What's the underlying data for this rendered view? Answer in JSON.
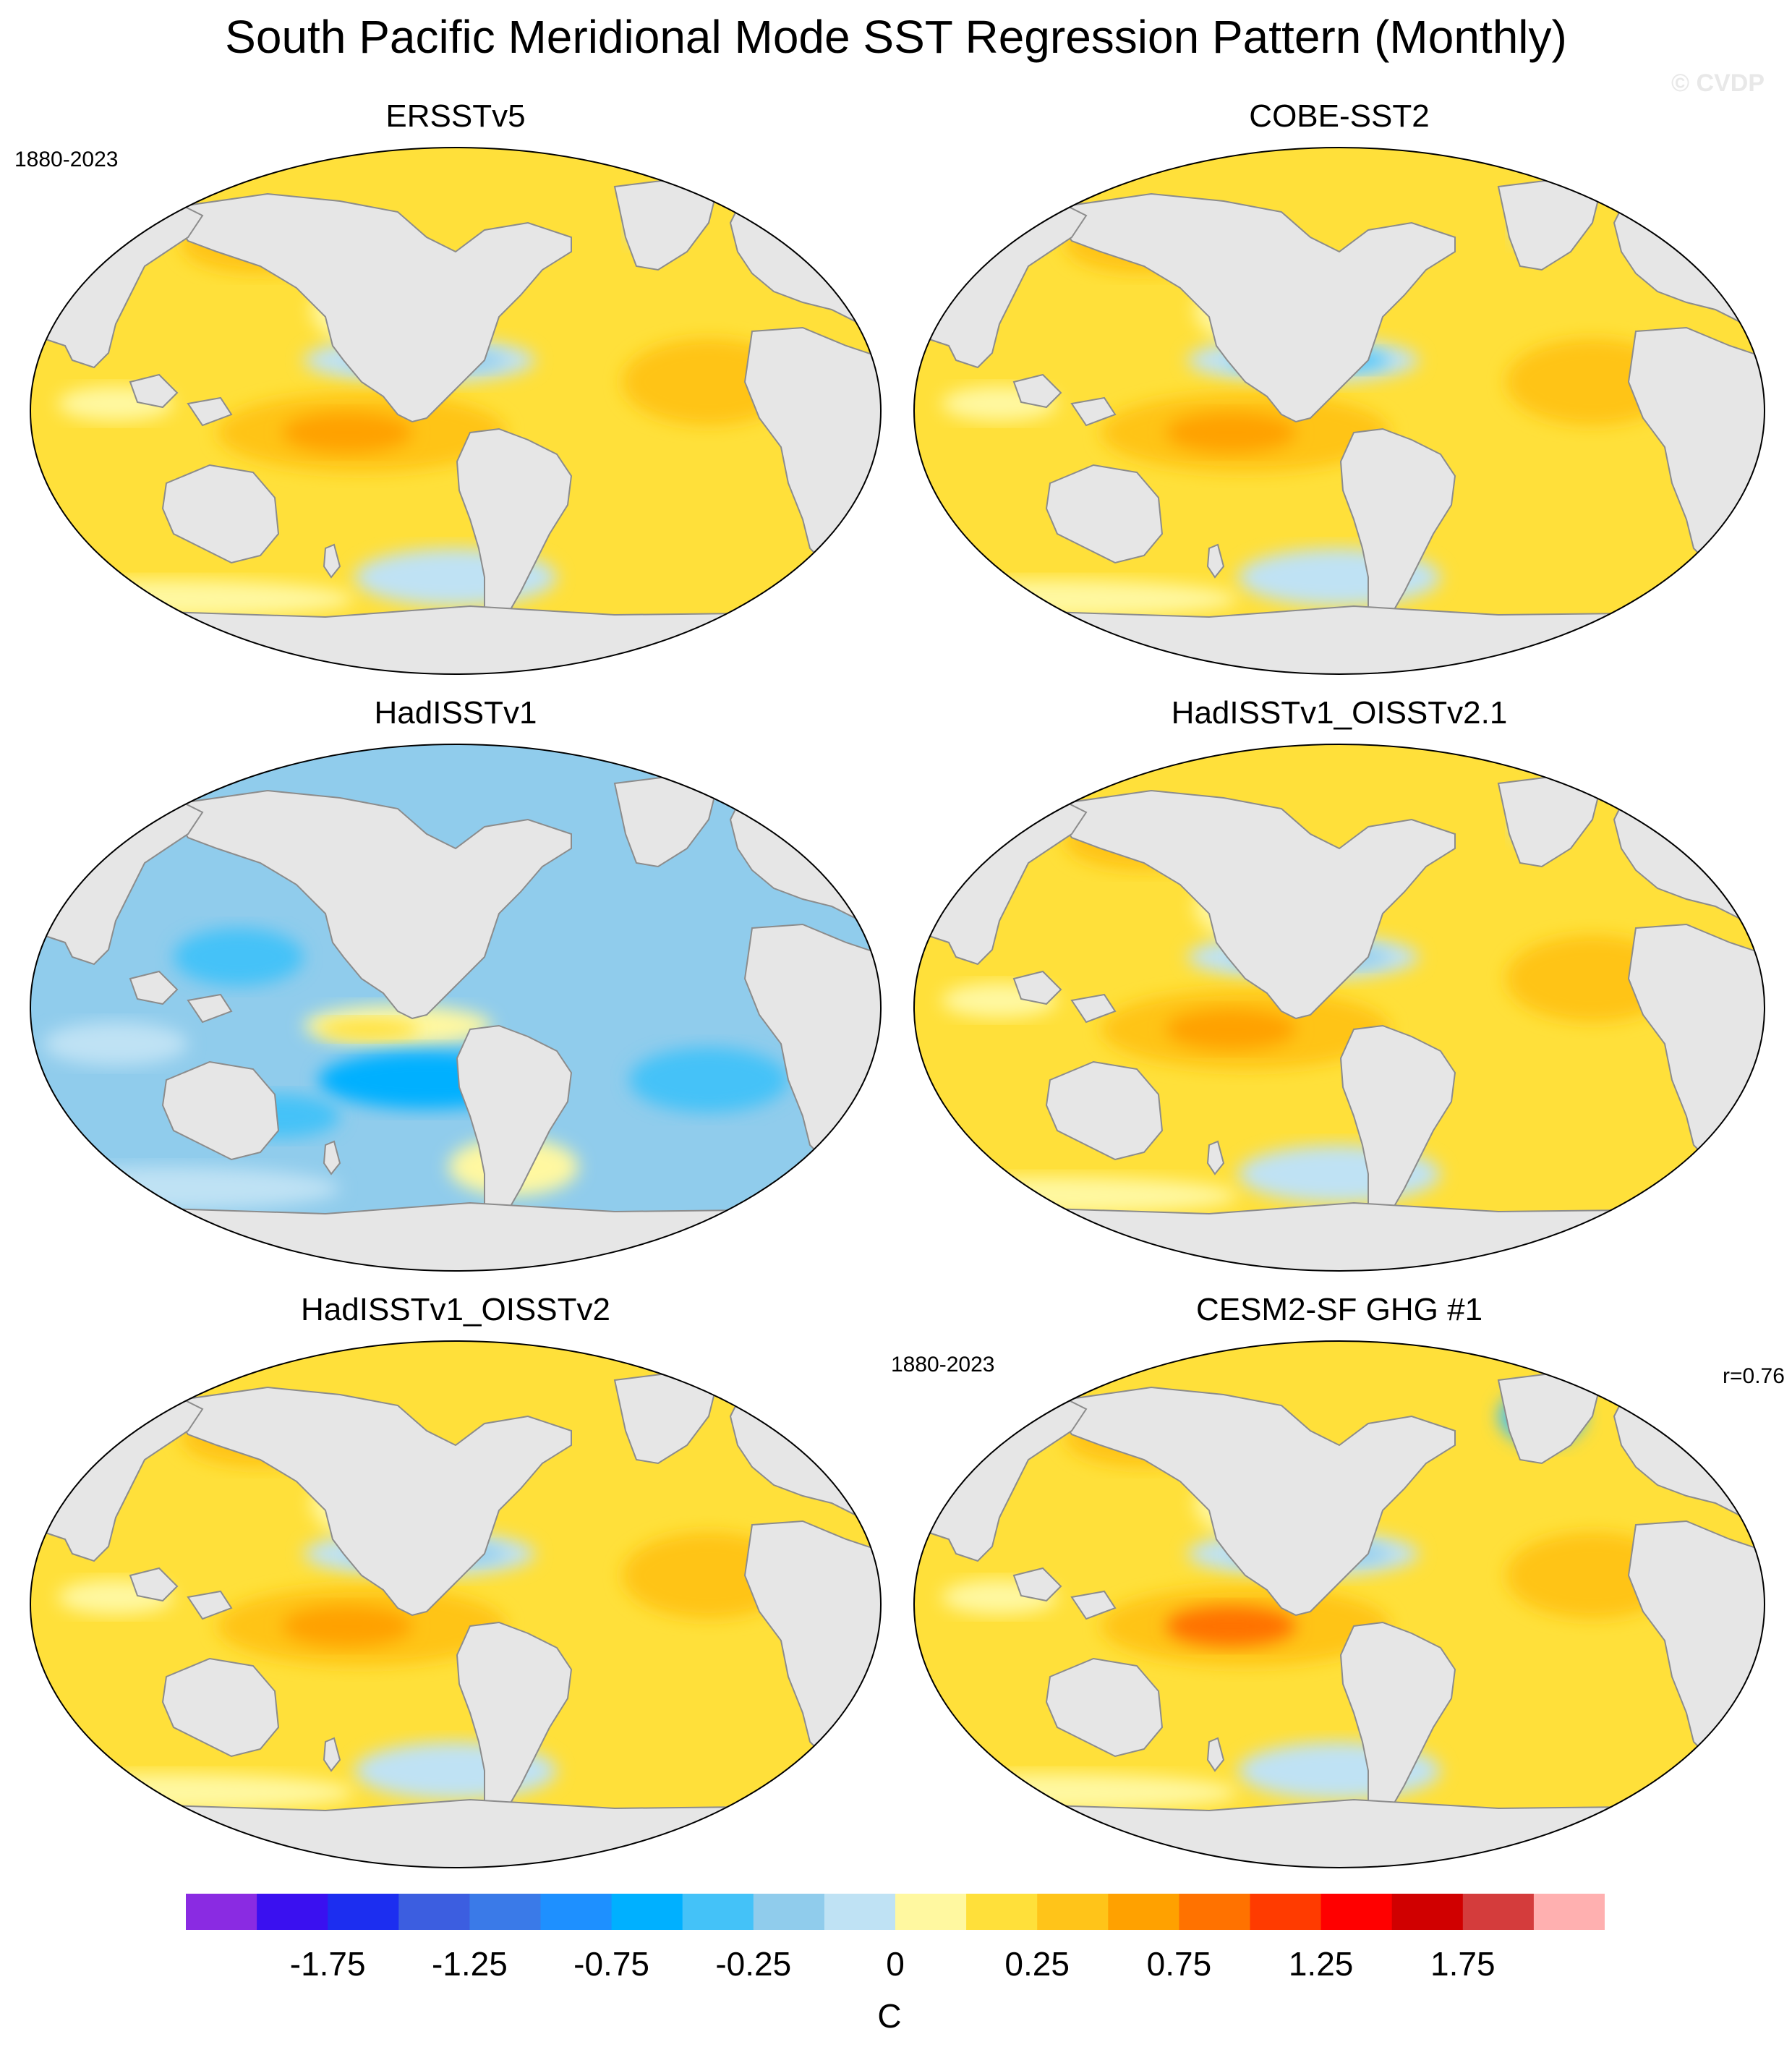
{
  "title": "South Pacific Meridional Mode SST Regression Pattern (Monthly)",
  "watermark": "© CVDP",
  "colors": {
    "land": "#e6e6e6",
    "coast": "#8c8c8c"
  },
  "panels": [
    {
      "id": "ersst",
      "title": "ERSSTv5",
      "period": "1880-2023",
      "corr": "",
      "pattern": "positive",
      "cold_tongue": "moderate",
      "north_atlantic": "weak-cold"
    },
    {
      "id": "cobe",
      "title": "COBE-SST2",
      "period": "",
      "corr": "",
      "pattern": "positive",
      "cold_tongue": "strong",
      "north_atlantic": "weak-cold"
    },
    {
      "id": "hadisst",
      "title": "HadISSTv1",
      "period": "",
      "corr": "",
      "pattern": "negative",
      "cold_tongue": "warm",
      "north_atlantic": "cold"
    },
    {
      "id": "hadoi21",
      "title": "HadISSTv1_OISSTv2.1",
      "period": "",
      "corr": "",
      "pattern": "positive",
      "cold_tongue": "moderate",
      "north_atlantic": "weak-cold"
    },
    {
      "id": "hadoi2",
      "title": "HadISSTv1_OISSTv2",
      "period": "",
      "corr": "",
      "pattern": "positive",
      "cold_tongue": "moderate",
      "north_atlantic": "neutral"
    },
    {
      "id": "cesm",
      "title": "CESM2-SF GHG #1",
      "period": "1880-2023",
      "corr": "r=0.76",
      "pattern": "positive-strong",
      "cold_tongue": "moderate",
      "north_atlantic": "strong-cold"
    }
  ],
  "colorbar": {
    "units": "C",
    "colors": [
      "#8a2be2",
      "#3a10f0",
      "#1c2ef0",
      "#3c5ee0",
      "#3a7ae8",
      "#1e90ff",
      "#00b0ff",
      "#44c2f8",
      "#90ccec",
      "#bfe2f4",
      "#fff8a0",
      "#ffe03a",
      "#ffc419",
      "#ffa100",
      "#ff7200",
      "#ff3b00",
      "#ff0000",
      "#d00000",
      "#d43c3c",
      "#ffb0b0"
    ],
    "tick_labels": [
      "-1.75",
      "-1.25",
      "-0.75",
      "-0.25",
      "0",
      "0.25",
      "0.75",
      "1.25",
      "1.75"
    ],
    "tick_values": [
      -1.75,
      -1.25,
      -0.75,
      -0.25,
      0,
      0.25,
      0.75,
      1.25,
      1.75
    ]
  }
}
